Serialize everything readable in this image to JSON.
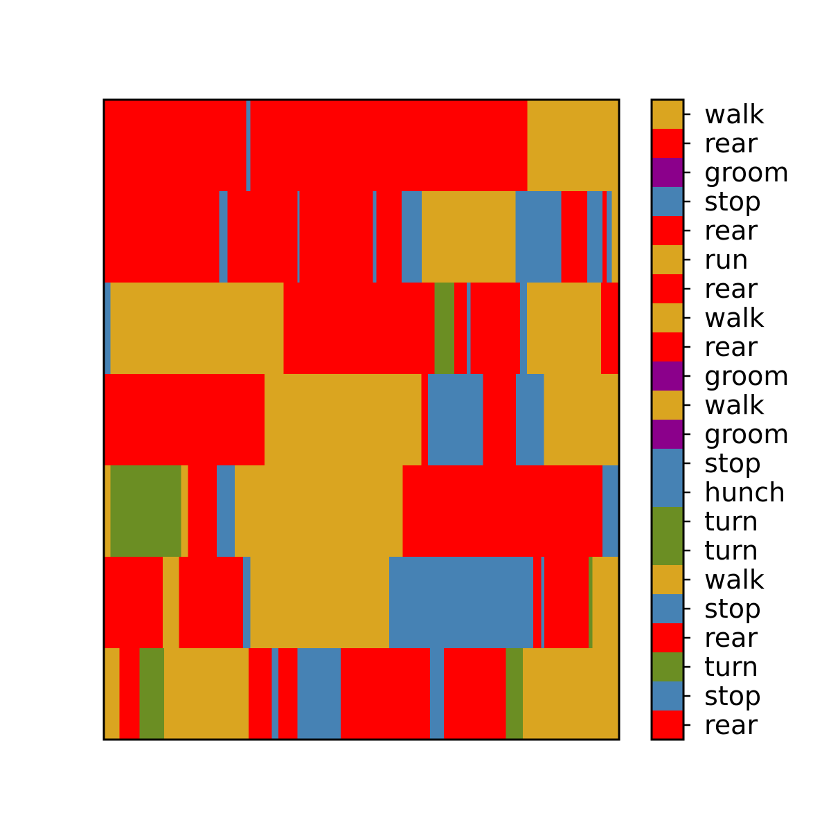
{
  "chart_data": {
    "type": "heatmap",
    "title": "",
    "xlabel": "",
    "ylabel": "",
    "x_ticks": "none",
    "y_ticks": "none",
    "grid": false,
    "rows": 7,
    "xlim": [
      0,
      100
    ],
    "colors": {
      "walk": "#DAA520",
      "run": "#DAA520",
      "rear": "#FF0000",
      "groom": "#8B008B",
      "stop": "#4682B4",
      "hunch": "#4682B4",
      "turn": "#6B8E23"
    },
    "colorbar": {
      "placement": "right",
      "ticks": [
        "walk",
        "rear",
        "groom",
        "stop",
        "rear",
        "run",
        "rear",
        "walk",
        "rear",
        "groom",
        "walk",
        "groom",
        "stop",
        "hunch",
        "turn",
        "turn",
        "walk",
        "stop",
        "rear",
        "turn",
        "stop",
        "rear"
      ]
    },
    "segments": [
      [
        {
          "behavior": "rear",
          "start": 0,
          "end": 27.6
        },
        {
          "behavior": "stop",
          "start": 27.6,
          "end": 28.4
        },
        {
          "behavior": "rear",
          "start": 28.4,
          "end": 82.2
        },
        {
          "behavior": "walk",
          "start": 82.2,
          "end": 100
        }
      ],
      [
        {
          "behavior": "rear",
          "start": 0,
          "end": 22.4
        },
        {
          "behavior": "stop",
          "start": 22.4,
          "end": 24.0
        },
        {
          "behavior": "rear",
          "start": 24.0,
          "end": 37.6
        },
        {
          "behavior": "stop",
          "start": 37.6,
          "end": 38.0
        },
        {
          "behavior": "rear",
          "start": 38.0,
          "end": 52.2
        },
        {
          "behavior": "stop",
          "start": 52.2,
          "end": 52.9
        },
        {
          "behavior": "rear",
          "start": 52.9,
          "end": 57.8
        },
        {
          "behavior": "stop",
          "start": 57.8,
          "end": 61.7
        },
        {
          "behavior": "walk",
          "start": 61.7,
          "end": 79.9
        },
        {
          "behavior": "stop",
          "start": 79.9,
          "end": 88.8
        },
        {
          "behavior": "rear",
          "start": 88.8,
          "end": 93.8
        },
        {
          "behavior": "stop",
          "start": 93.8,
          "end": 96.8
        },
        {
          "behavior": "rear",
          "start": 96.8,
          "end": 97.6
        },
        {
          "behavior": "stop",
          "start": 97.6,
          "end": 98.6
        },
        {
          "behavior": "walk",
          "start": 98.6,
          "end": 100
        }
      ],
      [
        {
          "behavior": "stop",
          "start": 0,
          "end": 1.3
        },
        {
          "behavior": "walk",
          "start": 1.3,
          "end": 34.9
        },
        {
          "behavior": "rear",
          "start": 34.9,
          "end": 64.2
        },
        {
          "behavior": "turn",
          "start": 64.2,
          "end": 68.0
        },
        {
          "behavior": "rear",
          "start": 68.0,
          "end": 70.4
        },
        {
          "behavior": "stop",
          "start": 70.4,
          "end": 71.2
        },
        {
          "behavior": "rear",
          "start": 71.2,
          "end": 80.8
        },
        {
          "behavior": "stop",
          "start": 80.8,
          "end": 82.1
        },
        {
          "behavior": "walk",
          "start": 82.1,
          "end": 96.5
        },
        {
          "behavior": "rear",
          "start": 96.5,
          "end": 100
        }
      ],
      [
        {
          "behavior": "rear",
          "start": 0,
          "end": 31.2
        },
        {
          "behavior": "walk",
          "start": 31.2,
          "end": 61.6
        },
        {
          "behavior": "rear",
          "start": 61.6,
          "end": 62.9
        },
        {
          "behavior": "stop",
          "start": 62.9,
          "end": 73.6
        },
        {
          "behavior": "rear",
          "start": 73.6,
          "end": 80.0
        },
        {
          "behavior": "stop",
          "start": 80.0,
          "end": 85.4
        },
        {
          "behavior": "walk",
          "start": 85.4,
          "end": 100
        }
      ],
      [
        {
          "behavior": "walk",
          "start": 0,
          "end": 1.3
        },
        {
          "behavior": "turn",
          "start": 1.3,
          "end": 15.0
        },
        {
          "behavior": "walk",
          "start": 15.0,
          "end": 16.3
        },
        {
          "behavior": "rear",
          "start": 16.3,
          "end": 21.9
        },
        {
          "behavior": "stop",
          "start": 21.9,
          "end": 25.4
        },
        {
          "behavior": "walk",
          "start": 25.4,
          "end": 58.0
        },
        {
          "behavior": "rear",
          "start": 58.0,
          "end": 96.8
        },
        {
          "behavior": "stop",
          "start": 96.8,
          "end": 100
        }
      ],
      [
        {
          "behavior": "rear",
          "start": 0,
          "end": 11.4
        },
        {
          "behavior": "walk",
          "start": 11.4,
          "end": 14.6
        },
        {
          "behavior": "rear",
          "start": 14.6,
          "end": 27.0
        },
        {
          "behavior": "stop",
          "start": 27.0,
          "end": 28.4
        },
        {
          "behavior": "walk",
          "start": 28.4,
          "end": 55.4
        },
        {
          "behavior": "stop",
          "start": 55.4,
          "end": 83.3
        },
        {
          "behavior": "rear",
          "start": 83.3,
          "end": 84.9
        },
        {
          "behavior": "stop",
          "start": 84.9,
          "end": 85.5
        },
        {
          "behavior": "rear",
          "start": 85.5,
          "end": 94.1
        },
        {
          "behavior": "turn",
          "start": 94.1,
          "end": 94.8
        },
        {
          "behavior": "walk",
          "start": 94.8,
          "end": 100
        }
      ],
      [
        {
          "behavior": "walk",
          "start": 0,
          "end": 3.0
        },
        {
          "behavior": "rear",
          "start": 3.0,
          "end": 6.9
        },
        {
          "behavior": "turn",
          "start": 6.9,
          "end": 11.7
        },
        {
          "behavior": "walk",
          "start": 11.7,
          "end": 28.1
        },
        {
          "behavior": "rear",
          "start": 28.1,
          "end": 32.6
        },
        {
          "behavior": "stop",
          "start": 32.6,
          "end": 33.9
        },
        {
          "behavior": "rear",
          "start": 33.9,
          "end": 37.6
        },
        {
          "behavior": "stop",
          "start": 37.6,
          "end": 46.0
        },
        {
          "behavior": "rear",
          "start": 46.0,
          "end": 63.3
        },
        {
          "behavior": "stop",
          "start": 63.3,
          "end": 66.0
        },
        {
          "behavior": "rear",
          "start": 66.0,
          "end": 78.0
        },
        {
          "behavior": "turn",
          "start": 78.0,
          "end": 81.3
        },
        {
          "behavior": "walk",
          "start": 81.3,
          "end": 100
        }
      ]
    ]
  }
}
